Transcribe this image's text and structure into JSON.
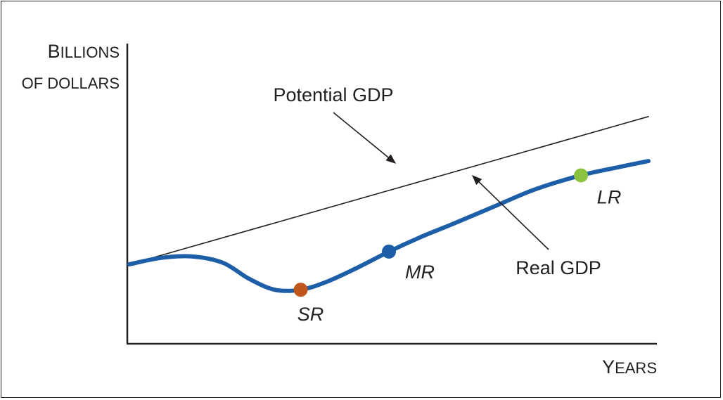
{
  "chart_data": {
    "type": "line",
    "title": "",
    "ylabel": {
      "line1": {
        "initial": "B",
        "rest": "ILLIONS"
      },
      "line2": "OF DOLLARS"
    },
    "xlabel": {
      "initial": "Y",
      "rest": "EARS"
    },
    "grid": false,
    "legend": "none",
    "series": [
      {
        "name": "Potential GDP",
        "color": "#231f20",
        "points": [
          [
            0,
            5
          ],
          [
            10,
            14.3
          ]
        ]
      },
      {
        "name": "Real GDP",
        "color": "#1d5ea8",
        "points": [
          [
            0,
            5
          ],
          [
            0.6,
            5.4
          ],
          [
            1.2,
            5.5
          ],
          [
            1.8,
            5.1
          ],
          [
            2.3,
            4.1
          ],
          [
            2.8,
            3.4
          ],
          [
            3.3,
            3.4
          ],
          [
            3.8,
            3.9
          ],
          [
            4.4,
            4.8
          ],
          [
            5,
            5.8
          ],
          [
            5.6,
            6.7
          ],
          [
            6.2,
            7.5
          ],
          [
            7,
            8.6
          ],
          [
            7.8,
            9.7
          ],
          [
            8.7,
            10.6
          ],
          [
            9.4,
            11.1
          ],
          [
            10,
            11.5
          ]
        ]
      }
    ],
    "points": [
      {
        "label": "SR",
        "x": 3.3,
        "y": 3.4,
        "color": "#c0561b"
      },
      {
        "label": "MR",
        "x": 5,
        "y": 5.8,
        "color": "#1d5ea8"
      },
      {
        "label": "LR",
        "x": 8.7,
        "y": 10.6,
        "color": "#8bc23f"
      }
    ],
    "annotations": [
      {
        "text": "Potential GDP",
        "target": "Potential GDP"
      },
      {
        "text": "Real GDP",
        "target": "Real GDP"
      }
    ]
  }
}
